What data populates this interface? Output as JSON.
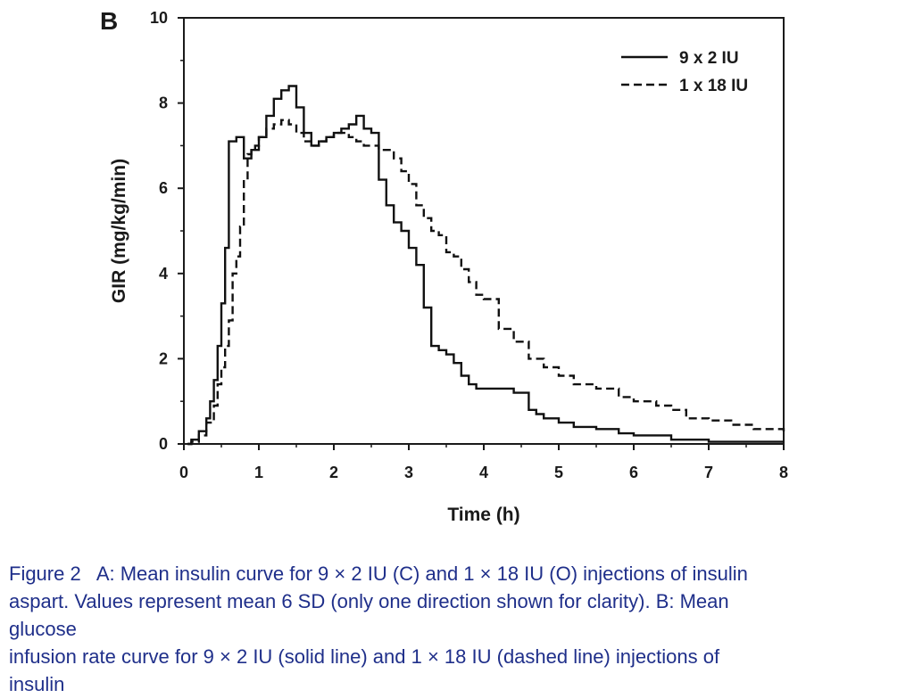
{
  "panel_label": "B",
  "chart_data": {
    "type": "line",
    "xlabel": "Time (h)",
    "ylabel": "GIR (mg/kg/min)",
    "xlim": [
      0,
      8
    ],
    "ylim": [
      0,
      10
    ],
    "xticks": [
      "0",
      "1",
      "2",
      "3",
      "4",
      "5",
      "6",
      "7",
      "8"
    ],
    "yticks": [
      "0",
      "2",
      "4",
      "6",
      "8",
      "10"
    ],
    "grid": false,
    "legend_position": "top-right",
    "series": [
      {
        "name": "9 x 2 IU",
        "style": "solid",
        "color": "#111111",
        "x": [
          0.05,
          0.1,
          0.2,
          0.3,
          0.35,
          0.4,
          0.45,
          0.5,
          0.55,
          0.6,
          0.7,
          0.8,
          0.9,
          1.0,
          1.1,
          1.2,
          1.3,
          1.4,
          1.5,
          1.6,
          1.7,
          1.8,
          1.9,
          2.0,
          2.1,
          2.2,
          2.3,
          2.4,
          2.5,
          2.6,
          2.7,
          2.8,
          2.9,
          3.0,
          3.1,
          3.2,
          3.3,
          3.4,
          3.5,
          3.6,
          3.7,
          3.8,
          3.9,
          4.0,
          4.2,
          4.4,
          4.6,
          4.7,
          4.8,
          5.0,
          5.2,
          5.5,
          5.8,
          6.0,
          6.5,
          7.0,
          7.5,
          8.0
        ],
        "y": [
          0.0,
          0.1,
          0.3,
          0.6,
          1.0,
          1.5,
          2.3,
          3.3,
          4.6,
          7.1,
          7.2,
          6.7,
          6.9,
          7.2,
          7.7,
          8.1,
          8.3,
          8.4,
          7.9,
          7.3,
          7.0,
          7.1,
          7.2,
          7.3,
          7.4,
          7.5,
          7.7,
          7.4,
          7.3,
          6.2,
          5.6,
          5.2,
          5.0,
          4.6,
          4.2,
          3.2,
          2.3,
          2.2,
          2.1,
          1.9,
          1.6,
          1.4,
          1.3,
          1.3,
          1.3,
          1.2,
          0.8,
          0.7,
          0.6,
          0.5,
          0.4,
          0.35,
          0.25,
          0.2,
          0.1,
          0.05,
          0.05,
          0.05
        ]
      },
      {
        "name": "1 x 18 IU",
        "style": "dashed",
        "color": "#111111",
        "x": [
          0.05,
          0.1,
          0.2,
          0.3,
          0.4,
          0.45,
          0.5,
          0.55,
          0.6,
          0.65,
          0.7,
          0.75,
          0.8,
          0.85,
          0.9,
          0.95,
          1.0,
          1.1,
          1.2,
          1.3,
          1.4,
          1.5,
          1.6,
          1.7,
          1.8,
          1.9,
          2.0,
          2.1,
          2.2,
          2.3,
          2.4,
          2.5,
          2.6,
          2.7,
          2.8,
          2.9,
          3.0,
          3.1,
          3.2,
          3.3,
          3.4,
          3.5,
          3.6,
          3.7,
          3.8,
          3.9,
          4.0,
          4.2,
          4.4,
          4.6,
          4.8,
          5.0,
          5.2,
          5.5,
          5.8,
          6.0,
          6.3,
          6.5,
          6.7,
          7.0,
          7.3,
          7.6,
          8.0
        ],
        "y": [
          0.0,
          0.05,
          0.2,
          0.5,
          0.9,
          1.4,
          1.8,
          2.3,
          2.9,
          4.0,
          4.4,
          5.1,
          6.2,
          6.8,
          6.9,
          7.0,
          7.2,
          7.4,
          7.5,
          7.6,
          7.5,
          7.3,
          7.1,
          7.0,
          7.1,
          7.2,
          7.3,
          7.3,
          7.2,
          7.1,
          7.0,
          7.0,
          6.9,
          6.9,
          6.7,
          6.4,
          6.1,
          5.6,
          5.3,
          5.0,
          4.9,
          4.5,
          4.4,
          4.1,
          3.8,
          3.5,
          3.4,
          2.7,
          2.4,
          2.0,
          1.8,
          1.6,
          1.4,
          1.3,
          1.1,
          1.0,
          0.9,
          0.8,
          0.6,
          0.55,
          0.45,
          0.35,
          0.25
        ]
      }
    ]
  },
  "caption": {
    "lines": [
      "Figure 2   A: Mean insulin curve for 9 × 2 IU (C) and 1 × 18 IU (O) injections of insulin",
      "aspart. Values represent mean 6 SD (only one direction shown for clarity). B: Mean",
      "glucose",
      "infusion rate curve for 9 × 2 IU (solid line) and 1 × 18 IU (dashed line) injections of",
      "insulin"
    ]
  }
}
